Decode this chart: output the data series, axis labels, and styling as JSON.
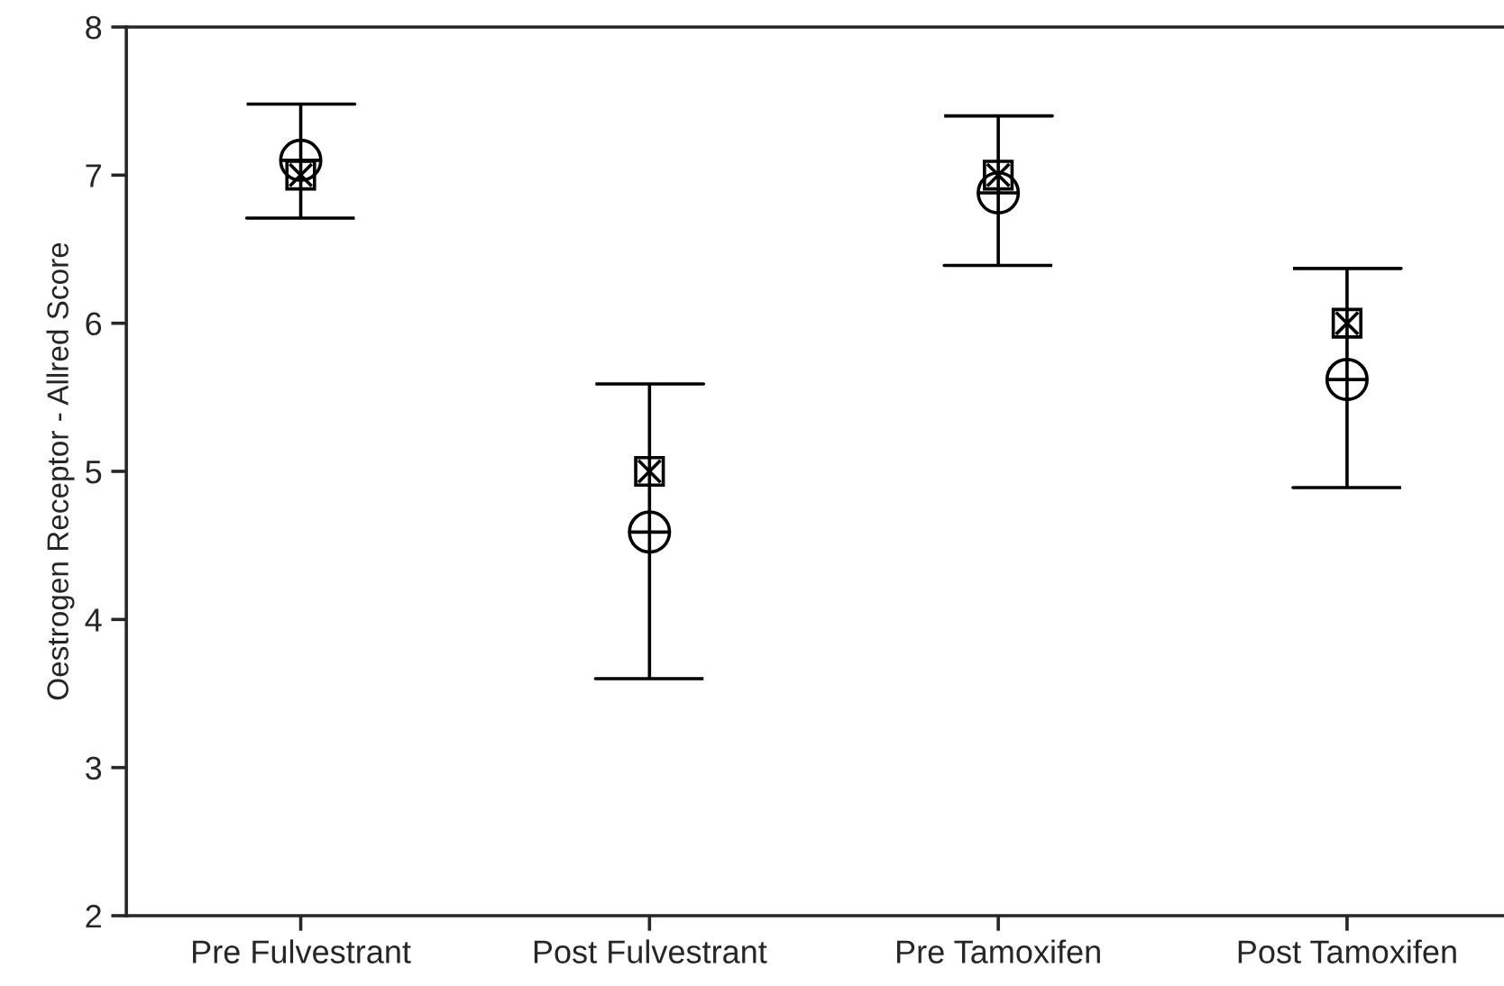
{
  "chart_data": {
    "type": "scatter",
    "ylabel": "Oestrogen Receptor - Allred Score",
    "categories": [
      "Pre Fulvestrant",
      "Post Fulvestrant",
      "Pre Tamoxifen",
      "Post Tamoxifen"
    ],
    "series": [
      {
        "color": "#000000",
        "marker": "square",
        "values": [
          7.0,
          5.0,
          7.0,
          6.0
        ]
      },
      {
        "color": "#000000",
        "marker": "circle",
        "values": [
          7.1,
          4.59,
          6.88,
          5.62
        ],
        "errors": [
          [
            6.71,
            7.48
          ],
          [
            3.6,
            5.59
          ],
          [
            6.39,
            7.4
          ],
          [
            4.89,
            6.37
          ]
        ]
      }
    ],
    "ylim": [
      2,
      8
    ],
    "yticks": [
      2,
      3,
      4,
      5,
      6,
      7,
      8
    ],
    "grid": false,
    "legend": false
  }
}
